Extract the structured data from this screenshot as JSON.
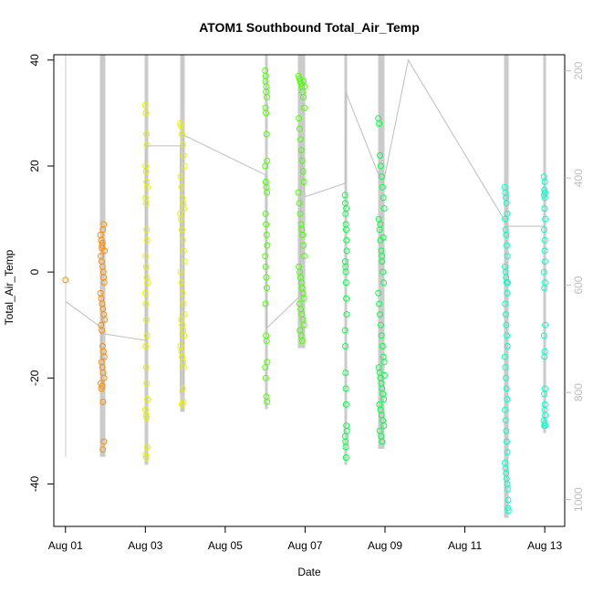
{
  "chart_data": {
    "type": "scatter",
    "title": "ATOM1 Southbound Total_Air_Temp",
    "xlabel": "Date",
    "ylabel": "Total_Air_Temp",
    "x_ticks": [
      "Aug 01",
      "Aug 03",
      "Aug 05",
      "Aug 07",
      "Aug 09",
      "Aug 11",
      "Aug 13"
    ],
    "y_ticks": [
      "-40",
      "-20",
      "0",
      "20",
      "40"
    ],
    "y2_ticks": [
      "200",
      "400",
      "600",
      "800",
      "1000"
    ],
    "xlim": [
      "2016-07-31T17:00",
      "2016-08-13T12:00"
    ],
    "ylim": [
      -48,
      41
    ],
    "y2lim": [
      1050,
      170
    ],
    "grid": false,
    "legend": "none",
    "colors": {
      "flight_aug01": "#FF8C00",
      "flight_aug03": "#E8F000",
      "flight_aug06": "#4CFF00",
      "flight_aug08": "#00FF44",
      "flight_aug12": "#00FFC8",
      "pressure_line": "#bebebe"
    },
    "series": [
      {
        "x": [
          "2016-08-01T00:00",
          "2016-08-01T21:00",
          "2016-08-01T21:30",
          "2016-08-01T22:00",
          "2016-08-01T22:30",
          "2016-08-01T23:00",
          "2016-08-01T23:30",
          "2016-08-01T21:15",
          "2016-08-01T21:45",
          "2016-08-01T22:15",
          "2016-08-01T22:45",
          "2016-08-01T23:15",
          "2016-08-01T21:00",
          "2016-08-01T21:30",
          "2016-08-01T22:00",
          "2016-08-01T22:30",
          "2016-08-01T23:00",
          "2016-08-01T23:30",
          "2016-08-01T21:20",
          "2016-08-01T21:50",
          "2016-08-01T22:20",
          "2016-08-01T22:50",
          "2016-08-01T23:20",
          "2016-08-01T21:40",
          "2016-08-01T22:10",
          "2016-08-01T22:40",
          "2016-08-01T23:10",
          "2016-08-01T21:10",
          "2016-08-01T21:35",
          "2016-08-01T22:05",
          "2016-08-01T22:35",
          "2016-08-01T23:05",
          "2016-08-01T22:25",
          "2016-08-01T22:55",
          "2016-08-01T21:55",
          "2016-08-01T22:15"
        ],
        "y": [
          -1.5,
          7,
          6,
          5,
          8,
          9,
          4,
          3,
          2,
          1,
          0,
          -2,
          -4,
          -5,
          -6,
          -7,
          -8,
          -9,
          -10,
          -11,
          -14,
          -15,
          -16,
          -17,
          -18,
          -19,
          -20,
          -21,
          -22,
          -21.5,
          -24.5,
          -32,
          -33.5,
          -1,
          4.5,
          5.5
        ]
      },
      {
        "x": [
          "2016-08-03T00:00",
          "2016-08-03T00:20",
          "2016-08-03T00:40",
          "2016-08-03T01:00",
          "2016-08-03T00:10",
          "2016-08-03T00:30",
          "2016-08-03T00:50",
          "2016-08-03T01:10",
          "2016-08-03T00:05",
          "2016-08-03T00:25",
          "2016-08-03T00:45",
          "2016-08-03T01:05",
          "2016-08-03T00:15",
          "2016-08-03T00:35",
          "2016-08-03T00:55",
          "2016-08-03T01:15",
          "2016-08-03T00:00",
          "2016-08-03T00:20",
          "2016-08-03T00:40",
          "2016-08-03T01:00",
          "2016-08-03T00:10",
          "2016-08-03T00:30",
          "2016-08-03T00:50",
          "2016-08-03T01:10",
          "2016-08-03T00:05",
          "2016-08-03T00:25",
          "2016-08-03T00:45",
          "2016-08-03T01:05",
          "2016-08-03T00:15",
          "2016-08-03T00:35"
        ],
        "y": [
          31.5,
          30,
          26,
          24,
          20,
          19,
          17,
          16,
          14,
          13,
          8,
          6,
          3,
          1,
          -1,
          -2,
          -4,
          -6,
          -9,
          -12,
          -14,
          -18,
          -21,
          -24,
          -26,
          -27,
          -27.5,
          -33,
          -34.5,
          -35
        ]
      },
      {
        "x": [
          "2016-08-03T21:00",
          "2016-08-03T21:30",
          "2016-08-03T22:00",
          "2016-08-03T22:30",
          "2016-08-03T23:00",
          "2016-08-03T23:30",
          "2016-08-03T21:15",
          "2016-08-03T21:45",
          "2016-08-03T22:15",
          "2016-08-03T22:45",
          "2016-08-03T23:15",
          "2016-08-03T21:00",
          "2016-08-03T21:30",
          "2016-08-03T22:00",
          "2016-08-03T22:30",
          "2016-08-03T23:00",
          "2016-08-03T23:30",
          "2016-08-03T21:20",
          "2016-08-03T21:50",
          "2016-08-03T22:20",
          "2016-08-03T22:50",
          "2016-08-03T23:20",
          "2016-08-03T21:40",
          "2016-08-03T22:10",
          "2016-08-03T22:40",
          "2016-08-03T23:10",
          "2016-08-03T21:10",
          "2016-08-03T21:35",
          "2016-08-03T22:05",
          "2016-08-03T22:35",
          "2016-08-03T23:05",
          "2016-08-03T22:25",
          "2016-08-03T22:55",
          "2016-08-03T21:55"
        ],
        "y": [
          28,
          27.5,
          26,
          24,
          22,
          20,
          18,
          16,
          14,
          13,
          12,
          11,
          10,
          8,
          6,
          4,
          2,
          0,
          -2,
          -4,
          -6,
          -8,
          -9,
          -10,
          -11,
          -12,
          -14,
          -15,
          -16,
          -17,
          -18,
          -22,
          -24.5,
          -25
        ]
      },
      {
        "x": [
          "2016-08-06T00:00",
          "2016-08-06T00:20",
          "2016-08-06T00:40",
          "2016-08-06T01:00",
          "2016-08-06T00:10",
          "2016-08-06T00:30",
          "2016-08-06T00:50",
          "2016-08-06T01:10",
          "2016-08-06T00:05",
          "2016-08-06T00:25",
          "2016-08-06T00:45",
          "2016-08-06T01:05",
          "2016-08-06T00:15",
          "2016-08-06T00:35",
          "2016-08-06T00:55",
          "2016-08-06T01:15",
          "2016-08-06T00:00",
          "2016-08-06T00:20",
          "2016-08-06T00:40",
          "2016-08-06T01:00",
          "2016-08-06T00:10",
          "2016-08-06T00:30",
          "2016-08-06T00:50",
          "2016-08-06T01:10",
          "2016-08-06T00:05",
          "2016-08-06T00:25",
          "2016-08-06T00:45",
          "2016-08-06T01:05",
          "2016-08-06T00:15",
          "2016-08-06T00:35"
        ],
        "y": [
          38,
          37,
          35,
          33,
          31,
          30,
          26,
          21,
          20,
          17,
          16,
          15,
          11,
          9,
          7,
          5,
          3,
          1,
          -1,
          -3,
          -6,
          -12,
          -13,
          -17,
          -18,
          -20,
          -23.5,
          -24.5,
          36,
          34
        ]
      },
      {
        "x": [
          "2016-08-06T20:00",
          "2016-08-06T20:30",
          "2016-08-06T21:00",
          "2016-08-06T21:30",
          "2016-08-06T22:00",
          "2016-08-06T22:30",
          "2016-08-06T23:00",
          "2016-08-06T23:30",
          "2016-08-06T20:15",
          "2016-08-06T20:45",
          "2016-08-06T21:15",
          "2016-08-06T21:45",
          "2016-08-06T22:15",
          "2016-08-06T22:45",
          "2016-08-06T23:15",
          "2016-08-06T20:00",
          "2016-08-06T20:30",
          "2016-08-06T21:00",
          "2016-08-06T21:30",
          "2016-08-06T22:00",
          "2016-08-06T22:30",
          "2016-08-06T23:00",
          "2016-08-06T23:30",
          "2016-08-06T20:15",
          "2016-08-06T20:45",
          "2016-08-06T21:15",
          "2016-08-06T21:45",
          "2016-08-06T22:15",
          "2016-08-06T22:45",
          "2016-08-06T23:15",
          "2016-08-06T20:40",
          "2016-08-06T21:20",
          "2016-08-06T22:00",
          "2016-08-06T22:40",
          "2016-08-06T23:20",
          "2016-08-06T20:50",
          "2016-08-06T21:40",
          "2016-08-06T22:20",
          "2016-08-06T23:00",
          "2016-08-06T23:40"
        ],
        "y": [
          37,
          36.5,
          36,
          35.5,
          35,
          34,
          33,
          31,
          29,
          27,
          25,
          23,
          21,
          19,
          17,
          15,
          13,
          11,
          9,
          8,
          7,
          5,
          3,
          1,
          0,
          -1,
          -2,
          -3,
          -4,
          -5,
          -6,
          -7,
          -8,
          -9,
          -10,
          -11,
          -12,
          -13,
          36,
          35
        ]
      },
      {
        "x": [
          "2016-08-08T00:00",
          "2016-08-08T00:10",
          "2016-08-08T00:20",
          "2016-08-08T00:30",
          "2016-08-08T00:40",
          "2016-08-08T00:50",
          "2016-08-08T01:00",
          "2016-08-08T00:05",
          "2016-08-08T00:15",
          "2016-08-08T00:25",
          "2016-08-08T00:35",
          "2016-08-08T00:45",
          "2016-08-08T00:55",
          "2016-08-08T00:00",
          "2016-08-08T00:10",
          "2016-08-08T00:20",
          "2016-08-08T00:30",
          "2016-08-08T00:40",
          "2016-08-08T00:50",
          "2016-08-08T01:00",
          "2016-08-08T00:05",
          "2016-08-08T00:15",
          "2016-08-08T00:25",
          "2016-08-08T00:35",
          "2016-08-08T00:45"
        ],
        "y": [
          14.5,
          13,
          11,
          9,
          8,
          6,
          4,
          2,
          1,
          0,
          -2,
          -5,
          -8,
          -11,
          -14,
          -19,
          -22,
          -25,
          -29,
          -30,
          -31,
          -32,
          -33,
          -35,
          12
        ]
      },
      {
        "x": [
          "2016-08-08T20:00",
          "2016-08-08T20:30",
          "2016-08-08T21:00",
          "2016-08-08T21:30",
          "2016-08-08T22:00",
          "2016-08-08T22:30",
          "2016-08-08T23:00",
          "2016-08-08T23:30",
          "2016-08-08T20:15",
          "2016-08-08T20:45",
          "2016-08-08T21:15",
          "2016-08-08T21:45",
          "2016-08-08T22:15",
          "2016-08-08T22:45",
          "2016-08-08T23:15",
          "2016-08-08T20:00",
          "2016-08-08T20:30",
          "2016-08-08T21:00",
          "2016-08-08T21:30",
          "2016-08-08T22:00",
          "2016-08-08T22:30",
          "2016-08-08T23:00",
          "2016-08-08T23:30",
          "2016-08-08T20:15",
          "2016-08-08T20:45",
          "2016-08-08T21:15",
          "2016-08-08T21:45",
          "2016-08-08T22:15",
          "2016-08-08T22:45",
          "2016-08-08T23:15",
          "2016-08-08T20:40",
          "2016-08-08T21:20",
          "2016-08-08T22:00",
          "2016-08-08T22:40",
          "2016-08-08T23:20",
          "2016-08-08T20:50",
          "2016-08-08T21:40",
          "2016-08-08T22:20",
          "2016-08-08T23:00",
          "2016-08-08T23:40",
          "2016-08-08T21:10",
          "2016-08-08T22:10"
        ],
        "y": [
          29,
          28,
          22,
          20,
          18,
          16,
          14,
          12,
          10,
          8,
          6,
          4,
          2,
          0,
          -2,
          -4,
          -6,
          -8,
          -10,
          -12,
          -14,
          -16,
          -17,
          -18,
          -19,
          -20,
          -21,
          -22,
          -23,
          -24,
          -25,
          -26,
          -27,
          -28,
          -29,
          -30,
          -31,
          -32,
          6.5,
          -19.5,
          9,
          3
        ]
      },
      {
        "x": [
          "2016-08-12T00:00",
          "2016-08-12T00:20",
          "2016-08-12T00:40",
          "2016-08-12T01:00",
          "2016-08-12T01:20",
          "2016-08-12T00:10",
          "2016-08-12T00:30",
          "2016-08-12T00:50",
          "2016-08-12T01:10",
          "2016-08-12T01:30",
          "2016-08-12T00:05",
          "2016-08-12T00:25",
          "2016-08-12T00:45",
          "2016-08-12T01:05",
          "2016-08-12T01:25",
          "2016-08-12T00:15",
          "2016-08-12T00:35",
          "2016-08-12T00:55",
          "2016-08-12T01:15",
          "2016-08-12T01:35",
          "2016-08-12T00:00",
          "2016-08-12T00:20",
          "2016-08-12T00:40",
          "2016-08-12T01:00",
          "2016-08-12T01:20",
          "2016-08-12T00:10",
          "2016-08-12T00:30",
          "2016-08-12T00:50",
          "2016-08-12T01:10",
          "2016-08-12T01:30",
          "2016-08-12T00:05",
          "2016-08-12T00:25",
          "2016-08-12T00:45",
          "2016-08-12T01:05",
          "2016-08-12T01:25",
          "2016-08-12T01:40",
          "2016-08-12T02:00",
          "2016-08-12T01:50",
          "2016-08-12T02:10",
          "2016-08-12T01:45"
        ],
        "y": [
          16,
          15,
          14,
          13,
          11,
          10,
          8,
          7,
          5,
          3,
          1,
          0,
          -1,
          -2,
          -4,
          -6,
          -8,
          -10,
          -12,
          -14,
          -16,
          -18,
          -20,
          -22,
          -24,
          -26,
          -28,
          -30,
          -32,
          -34,
          -36,
          -37,
          -38,
          -39,
          -40,
          -41,
          -43,
          -44.5,
          -45,
          -2
        ]
      },
      {
        "x": [
          "2016-08-12T23:30",
          "2016-08-13T00:00",
          "2016-08-12T23:45",
          "2016-08-13T00:10",
          "2016-08-12T23:35",
          "2016-08-13T00:05",
          "2016-08-12T23:50",
          "2016-08-13T00:15",
          "2016-08-12T23:40",
          "2016-08-13T00:00",
          "2016-08-12T23:55",
          "2016-08-13T00:10",
          "2016-08-12T23:30",
          "2016-08-13T00:05",
          "2016-08-12T23:45",
          "2016-08-13T00:15",
          "2016-08-12T23:35",
          "2016-08-13T00:00",
          "2016-08-12T23:50",
          "2016-08-13T00:10",
          "2016-08-12T23:40",
          "2016-08-13T00:05",
          "2016-08-12T23:55",
          "2016-08-13T00:15",
          "2016-08-12T23:30",
          "2016-08-13T00:00",
          "2016-08-12T23:45",
          "2016-08-13T00:10"
        ],
        "y": [
          18,
          17,
          15.5,
          15,
          14.5,
          14,
          12,
          10,
          8,
          6,
          4,
          2,
          0,
          -2,
          -3,
          -10,
          -12,
          -15,
          -16,
          -22,
          -23,
          -25,
          -26,
          -27,
          -28,
          -28.5,
          -29,
          -29
        ]
      }
    ],
    "pressure_path_y2": [
      {
        "x": "2016-08-01T00:00",
        "y2": 630
      },
      {
        "x": "2016-08-01T22:00",
        "y2": 680
      },
      {
        "x": "2016-08-01T21:00",
        "y2": 760
      },
      {
        "x": "2016-08-01T21:30",
        "y2": 690
      },
      {
        "x": "2016-08-03T00:10",
        "y2": 703
      },
      {
        "x": "2016-08-03T00:15",
        "y2": 340
      },
      {
        "x": "2016-08-03T21:00",
        "y2": 340
      },
      {
        "x": "2016-08-03T21:00",
        "y2": 800
      },
      {
        "x": "2016-08-03T23:00",
        "y2": 792
      },
      {
        "x": "2016-08-03T23:00",
        "y2": 320
      },
      {
        "x": "2016-08-06T00:00",
        "y2": 394
      },
      {
        "x": "2016-08-06T01:00",
        "y2": 680
      },
      {
        "x": "2016-08-06T21:00",
        "y2": 620
      },
      {
        "x": "2016-08-06T21:30",
        "y2": 340
      },
      {
        "x": "2016-08-07T00:00",
        "y2": 435
      },
      {
        "x": "2016-08-08T00:00",
        "y2": 410
      },
      {
        "x": "2016-08-08T00:30",
        "y2": 240
      },
      {
        "x": "2016-08-08T21:00",
        "y2": 400
      },
      {
        "x": "2016-08-08T23:00",
        "y2": 410
      },
      {
        "x": "2016-08-09T14:00",
        "y2": 180
      },
      {
        "x": "2016-08-12T02:00",
        "y2": 490
      },
      {
        "x": "2016-08-12T23:30",
        "y2": 490
      }
    ]
  }
}
